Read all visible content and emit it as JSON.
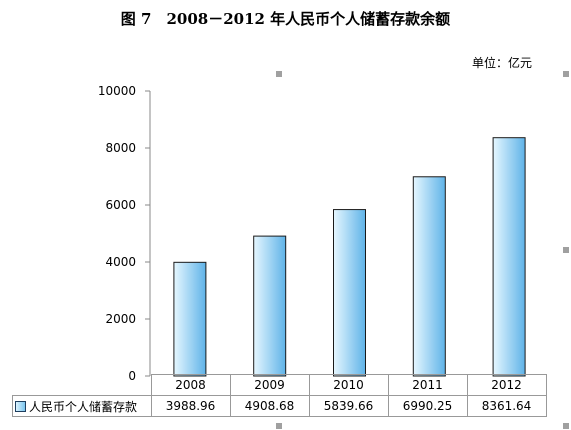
{
  "title": "图 7　2008－2012 年人民币个人储蓄存款余额",
  "unit_label": "单位：亿元",
  "chart_data": {
    "type": "bar",
    "title": "图 7　2008－2012 年人民币个人储蓄存款余额",
    "categories": [
      "2008",
      "2009",
      "2010",
      "2011",
      "2012"
    ],
    "series": [
      {
        "name": "人民币个人储蓄存款",
        "values": [
          3988.96,
          4908.68,
          5839.66,
          6990.25,
          8361.64
        ]
      }
    ],
    "value_labels": [
      "3988.96",
      "4908.68",
      "5839.66",
      "6990.25",
      "8361.64"
    ],
    "ylim": [
      0,
      10000
    ],
    "yticks": [
      0,
      2000,
      4000,
      6000,
      8000,
      10000
    ],
    "grid": false,
    "legend": "data-table",
    "colors": {
      "bar_light": "#e6f7ff",
      "bar_dark": "#5fb3e8",
      "bar_border": "#1a1a1a"
    }
  }
}
